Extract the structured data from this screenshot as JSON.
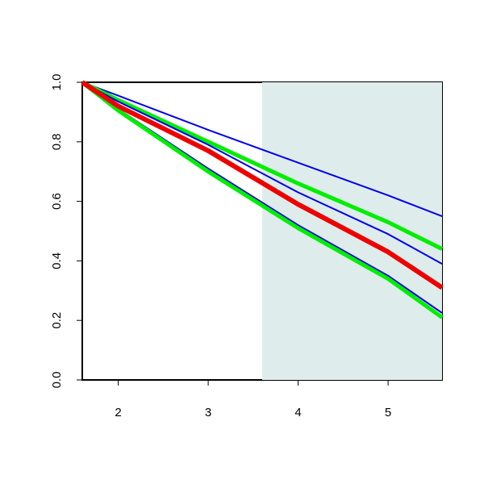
{
  "chart_data": {
    "type": "line",
    "x": [
      1.6,
      2,
      3,
      4,
      5,
      5.6
    ],
    "series": [
      {
        "color": "#0000ee",
        "width": 2,
        "values": [
          1,
          0.955,
          0.84,
          0.73,
          0.62,
          0.55
        ]
      },
      {
        "color": "#00ee00",
        "width": 5,
        "values": [
          1,
          0.94,
          0.8,
          0.66,
          0.53,
          0.44
        ]
      },
      {
        "color": "#0000ee",
        "width": 2,
        "values": [
          1,
          0.935,
          0.79,
          0.63,
          0.49,
          0.39
        ]
      },
      {
        "color": "#0000ee",
        "width": 2,
        "values": [
          1,
          0.91,
          0.71,
          0.52,
          0.35,
          0.225
        ]
      },
      {
        "color": "#00ee00",
        "width": 5,
        "values": [
          1,
          0.905,
          0.7,
          0.51,
          0.34,
          0.21
        ]
      },
      {
        "color": "#ee0000",
        "width": 6,
        "values": [
          1,
          0.92,
          0.77,
          0.59,
          0.43,
          0.31
        ]
      }
    ],
    "shade": [
      3.6,
      5.6
    ],
    "shade_color": "#dfecec",
    "xlim": [
      1.6,
      5.6
    ],
    "ylim": [
      0,
      1
    ],
    "xticks": [
      2,
      3,
      4,
      5
    ],
    "yticks": [
      {
        "value": 0,
        "label": "0.0"
      },
      0.2,
      0.4,
      0.6,
      0.8,
      {
        "value": 1,
        "label": "1.0"
      }
    ]
  }
}
